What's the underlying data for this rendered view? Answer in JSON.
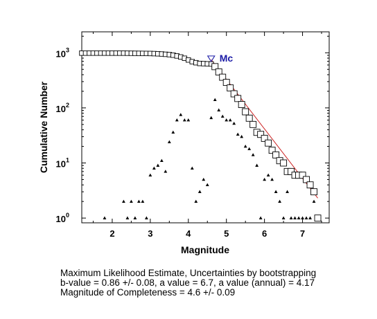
{
  "chart_data": {
    "type": "scatter",
    "xlabel": "Magnitude",
    "ylabel": "Cumulative Number",
    "xlim": [
      1.2,
      7.7
    ],
    "ylim": [
      0.82,
      2400
    ],
    "yscale": "log",
    "xticks": [
      2,
      3,
      4,
      5,
      6,
      7
    ],
    "yticks": [
      {
        "value": 1,
        "label": "10",
        "exp": "0"
      },
      {
        "value": 10,
        "label": "10",
        "exp": "1"
      },
      {
        "value": 100,
        "label": "10",
        "exp": "2"
      },
      {
        "value": 1000,
        "label": "10",
        "exp": "3"
      }
    ],
    "grid": false,
    "colors": {
      "cumulative": "#000000",
      "noncumulative": "#000000",
      "fit": "#cc2222",
      "mc": "#1a1aa6"
    },
    "series": [
      {
        "marker": "square",
        "x": [
          1.2,
          1.3,
          1.4,
          1.5,
          1.6,
          1.7,
          1.8,
          1.9,
          2.0,
          2.1,
          2.2,
          2.3,
          2.4,
          2.5,
          2.6,
          2.7,
          2.8,
          2.9,
          3.0,
          3.1,
          3.2,
          3.3,
          3.4,
          3.5,
          3.6,
          3.7,
          3.8,
          3.9,
          4.0,
          4.1,
          4.2,
          4.3,
          4.4,
          4.5,
          4.6,
          4.7,
          4.8,
          4.9,
          5.0,
          5.1,
          5.2,
          5.3,
          5.4,
          5.5,
          5.6,
          5.7,
          5.8,
          5.9,
          6.0,
          6.1,
          6.2,
          6.3,
          6.4,
          6.5,
          6.6,
          6.7,
          6.8,
          6.9,
          7.0,
          7.1,
          7.2,
          7.3,
          7.4
        ],
        "y": [
          985,
          985,
          985,
          985,
          985,
          985,
          985,
          985,
          984,
          984,
          984,
          984,
          982,
          980,
          978,
          976,
          974,
          972,
          970,
          965,
          958,
          950,
          938,
          925,
          905,
          875,
          840,
          795,
          740,
          690,
          660,
          640,
          635,
          630,
          626,
          560,
          450,
          360,
          290,
          230,
          180,
          148,
          115,
          85,
          65,
          50,
          36,
          33,
          28,
          23,
          17,
          14,
          11,
          10,
          7,
          7,
          6,
          6,
          6,
          5,
          4,
          3,
          1
        ]
      },
      {
        "marker": "triangle",
        "x": [
          1.8,
          2.3,
          2.4,
          2.5,
          2.6,
          2.7,
          2.8,
          2.9,
          3.0,
          3.1,
          3.2,
          3.3,
          3.4,
          3.5,
          3.6,
          3.7,
          3.8,
          3.9,
          4.0,
          4.1,
          4.2,
          4.3,
          4.4,
          4.5,
          4.6,
          4.7,
          4.8,
          4.9,
          5.0,
          5.1,
          5.2,
          5.3,
          5.4,
          5.5,
          5.6,
          5.7,
          5.8,
          5.9,
          6.0,
          6.1,
          6.2,
          6.3,
          6.4,
          6.5,
          6.6,
          6.7,
          6.8,
          6.9,
          7.0,
          7.1,
          7.2,
          7.3,
          7.4
        ],
        "y": [
          1,
          2,
          1,
          2,
          1,
          2,
          2,
          1,
          6,
          8,
          9,
          11,
          7,
          24,
          36,
          60,
          75,
          60,
          60,
          8,
          2,
          3,
          5,
          4,
          66,
          140,
          91,
          70,
          60,
          60,
          52,
          33,
          30,
          20,
          18,
          14,
          9,
          1,
          5,
          6,
          5,
          3,
          2,
          1,
          3,
          1,
          1,
          1,
          1,
          1,
          1,
          2,
          1
        ]
      },
      {
        "marker": "line",
        "x": [
          4.6,
          7.4
        ],
        "y": [
          750,
          2.3
        ]
      }
    ],
    "annotations": [
      {
        "text": "Mc",
        "x": 4.6,
        "y": 780,
        "marker": "inverted-triangle"
      }
    ]
  },
  "caption": {
    "line1": "Maximum Likelihood Estimate, Uncertainties by bootstrapping",
    "line2": "b-value = 0.86 +/- 0.08,  a value = 6.7,  a value (annual) = 4.17",
    "line3": "Magnitude of Completeness = 4.6 +/- 0.09"
  }
}
